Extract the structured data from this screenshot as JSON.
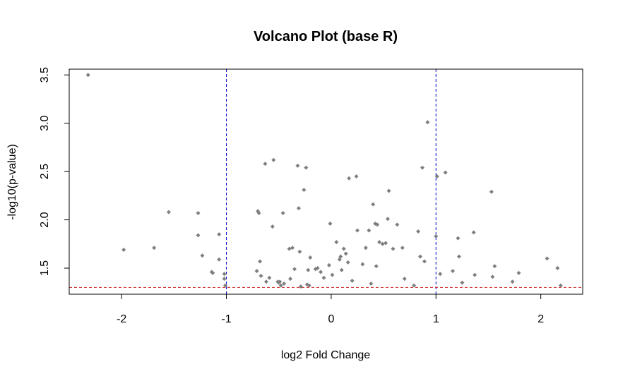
{
  "chart_data": {
    "type": "scatter",
    "title": "Volcano Plot (base R)",
    "xlabel": "log2 Fold Change",
    "ylabel": "-log10(p-value)",
    "xlim": [
      -2.5,
      2.4
    ],
    "ylim": [
      1.23,
      3.56
    ],
    "xticks": [
      -2,
      -1,
      0,
      1,
      2
    ],
    "xtick_labels": [
      "-2",
      "-1",
      "0",
      "1",
      "2"
    ],
    "yticks": [
      1.5,
      2.0,
      2.5,
      3.0,
      3.5
    ],
    "ytick_labels": [
      "1.5",
      "2.0",
      "2.5",
      "3.0",
      "3.5"
    ],
    "grid": false,
    "legend": "none",
    "point_color": "#7f7f7f",
    "reference_lines": [
      {
        "orientation": "vertical",
        "value": -1,
        "color": "#0000cd",
        "style": "dashed"
      },
      {
        "orientation": "vertical",
        "value": 1,
        "color": "#0000cd",
        "style": "dashed"
      },
      {
        "orientation": "horizontal",
        "value": 1.3,
        "color": "#cd2626",
        "style": "dashed"
      }
    ],
    "series": [
      {
        "x": [
          -2.32,
          -1.98,
          -1.69,
          -1.55,
          -1.27,
          -1.27,
          -1.23,
          -1.14,
          -1.13,
          -1.07,
          -1.07,
          -1.02,
          -1.02,
          -1.01,
          -0.71,
          -0.7,
          -0.69,
          -0.68,
          -0.67,
          -0.63,
          -0.62,
          -0.59,
          -0.56,
          -0.55,
          -0.51,
          -0.5,
          -0.49,
          -0.48,
          -0.46,
          -0.45,
          -0.4,
          -0.39,
          -0.37,
          -0.35,
          -0.32,
          -0.31,
          -0.3,
          -0.29,
          -0.26,
          -0.24,
          -0.23,
          -0.22,
          -0.21,
          -0.2,
          -0.15,
          -0.13,
          -0.1,
          -0.07,
          -0.02,
          -0.01,
          0.01,
          0.05,
          0.08,
          0.09,
          0.1,
          0.12,
          0.14,
          0.16,
          0.17,
          0.2,
          0.24,
          0.25,
          0.3,
          0.33,
          0.36,
          0.38,
          0.4,
          0.42,
          0.43,
          0.44,
          0.46,
          0.49,
          0.52,
          0.54,
          0.55,
          0.59,
          0.63,
          0.68,
          0.7,
          0.79,
          0.83,
          0.85,
          0.87,
          0.89,
          0.92,
          1.0,
          1.01,
          1.04,
          1.09,
          1.16,
          1.21,
          1.22,
          1.25,
          1.36,
          1.37,
          1.53,
          1.54,
          1.56,
          1.73,
          1.79,
          2.06,
          2.16,
          2.19
        ],
        "y": [
          3.5,
          1.69,
          1.71,
          2.08,
          2.07,
          1.84,
          1.63,
          1.46,
          1.45,
          1.85,
          1.59,
          1.44,
          1.39,
          1.32,
          1.47,
          2.09,
          2.07,
          1.57,
          1.42,
          2.58,
          1.36,
          1.4,
          1.93,
          2.62,
          1.36,
          1.35,
          1.36,
          1.32,
          2.07,
          1.34,
          1.7,
          1.39,
          1.71,
          1.49,
          2.56,
          2.12,
          1.67,
          1.31,
          2.31,
          2.54,
          1.33,
          1.48,
          1.32,
          1.61,
          1.49,
          1.5,
          1.46,
          1.4,
          1.53,
          1.96,
          1.43,
          1.77,
          1.59,
          1.62,
          1.48,
          1.7,
          1.65,
          1.56,
          2.43,
          1.37,
          2.45,
          1.89,
          1.54,
          1.71,
          1.89,
          1.34,
          2.16,
          1.96,
          1.52,
          1.95,
          1.77,
          1.75,
          1.76,
          2.01,
          2.3,
          1.7,
          1.95,
          1.71,
          1.39,
          1.32,
          1.88,
          1.62,
          2.54,
          1.57,
          3.01,
          1.83,
          2.45,
          1.44,
          2.49,
          1.47,
          1.81,
          1.62,
          1.35,
          1.87,
          1.43,
          2.29,
          1.41,
          1.52,
          1.36,
          1.45,
          1.6,
          1.5,
          1.32
        ]
      }
    ]
  }
}
